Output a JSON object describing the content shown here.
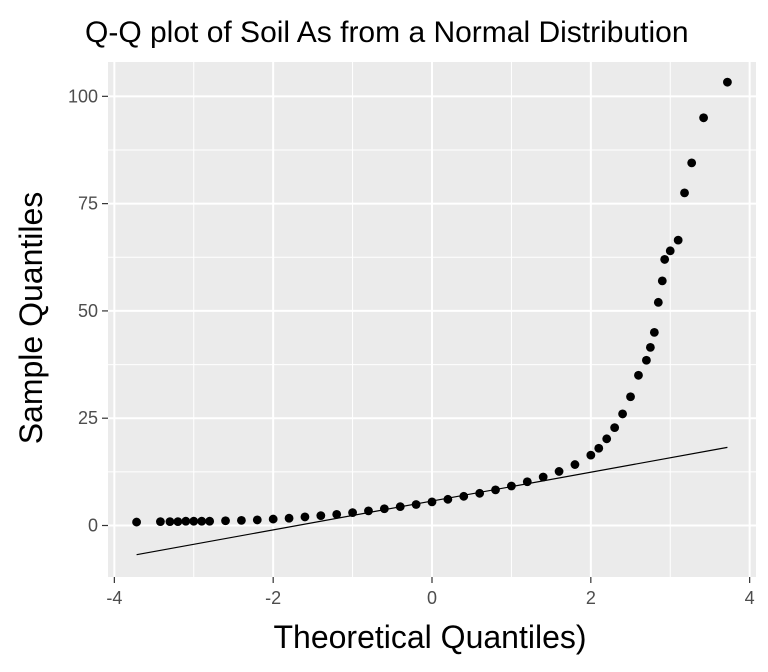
{
  "chart_data": {
    "type": "scatter",
    "title": "Q-Q plot of Soil As from a Normal Distribution",
    "xlabel": "Theoretical Quantiles)",
    "ylabel": "Sample Quantiles",
    "xlim": [
      -4.08,
      4.08
    ],
    "ylim": [
      -12,
      108
    ],
    "x_ticks": [
      -4,
      -2,
      0,
      2,
      4
    ],
    "x_tick_labels": [
      "-4",
      "-2",
      "0",
      "2",
      "4"
    ],
    "y_ticks": [
      0,
      25,
      50,
      75,
      100
    ],
    "y_tick_labels": [
      "0",
      "25",
      "50",
      "75",
      "100"
    ],
    "grid": true,
    "legend": "none",
    "colors": {
      "panel_background": "#ebebeb",
      "grid": "#ffffff",
      "points": "#000000",
      "reference_line": "#000000",
      "tick_text": "#4d4d4d",
      "tick_marks": "#333333"
    },
    "reference_line": {
      "x": [
        -3.72,
        3.72
      ],
      "y": [
        -6.8,
        18.2
      ]
    },
    "sample_points": [
      [
        -3.72,
        0.8
      ],
      [
        -3.42,
        0.9
      ],
      [
        -3.3,
        0.9
      ],
      [
        -3.2,
        0.9
      ],
      [
        -3.1,
        1.0
      ],
      [
        -3.0,
        1.0
      ],
      [
        -2.9,
        1.0
      ],
      [
        -2.8,
        1.0
      ],
      [
        -2.6,
        1.1
      ],
      [
        -2.4,
        1.2
      ],
      [
        -2.2,
        1.3
      ],
      [
        -2.0,
        1.5
      ],
      [
        -1.8,
        1.7
      ],
      [
        -1.6,
        2.0
      ],
      [
        -1.4,
        2.3
      ],
      [
        -1.2,
        2.6
      ],
      [
        -1.0,
        3.0
      ],
      [
        -0.8,
        3.4
      ],
      [
        -0.6,
        3.9
      ],
      [
        -0.4,
        4.4
      ],
      [
        -0.2,
        4.9
      ],
      [
        0.0,
        5.5
      ],
      [
        0.2,
        6.1
      ],
      [
        0.4,
        6.8
      ],
      [
        0.6,
        7.5
      ],
      [
        0.8,
        8.3
      ],
      [
        1.0,
        9.2
      ],
      [
        1.2,
        10.2
      ],
      [
        1.4,
        11.3
      ],
      [
        1.6,
        12.6
      ],
      [
        1.8,
        14.2
      ],
      [
        2.0,
        16.4
      ],
      [
        2.1,
        18.0
      ],
      [
        2.2,
        20.2
      ],
      [
        2.3,
        22.8
      ],
      [
        2.4,
        26.0
      ],
      [
        2.5,
        30.0
      ],
      [
        2.6,
        35.0
      ],
      [
        2.7,
        38.5
      ],
      [
        2.75,
        41.5
      ],
      [
        2.8,
        45.0
      ],
      [
        2.85,
        52.0
      ],
      [
        2.9,
        57.0
      ],
      [
        2.93,
        62.0
      ],
      [
        3.0,
        64.0
      ],
      [
        3.1,
        66.5
      ],
      [
        3.18,
        77.5
      ],
      [
        3.27,
        84.5
      ],
      [
        3.42,
        95.0
      ],
      [
        3.72,
        103.3
      ]
    ]
  }
}
